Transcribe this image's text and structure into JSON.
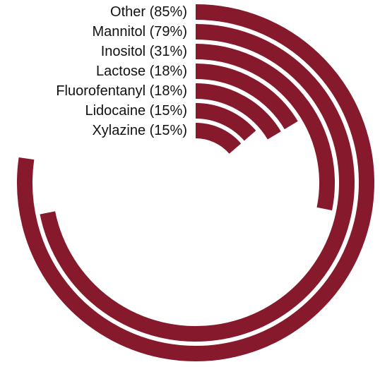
{
  "chart_data": {
    "type": "radial_bar",
    "categories": [
      "Other",
      "Mannitol",
      "Inositol",
      "Lactose",
      "Fluorofentanyl",
      "Lidocaine",
      "Xylazine"
    ],
    "values": [
      85,
      79,
      31,
      18,
      18,
      15,
      15
    ],
    "value_labels": [
      "(85%)",
      "(79%)",
      "(31%)",
      "(18%)",
      "(18%)",
      "(15%)",
      "(15%)"
    ],
    "xlim": [
      0,
      110
    ],
    "color": "#861a2c"
  }
}
